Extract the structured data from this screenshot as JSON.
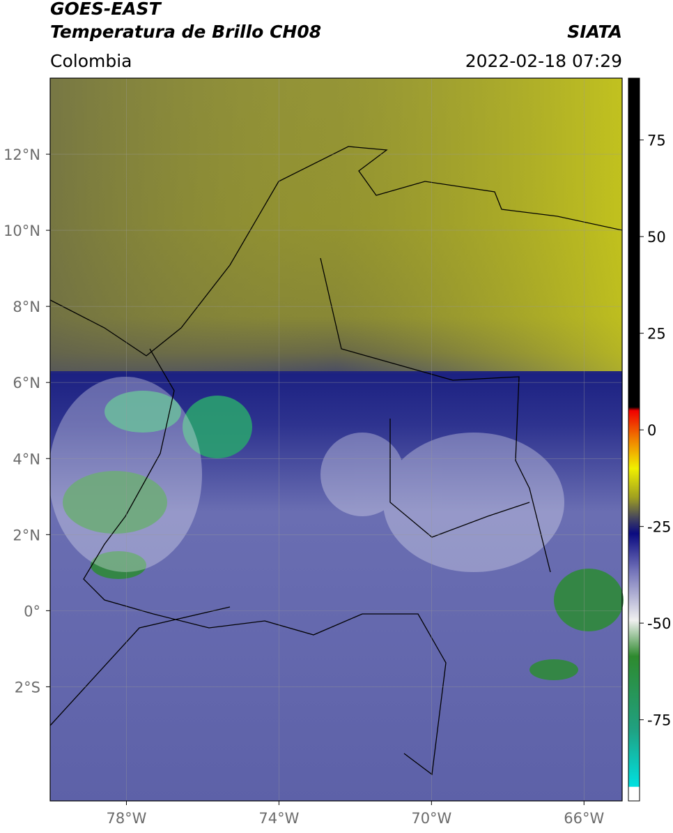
{
  "header": {
    "title": "GOES-EAST",
    "subtitle": "Temperatura de Brillo CH08",
    "region": "Colombia",
    "source": "SIATA",
    "datetime": "2022-02-18 07:29"
  },
  "map": {
    "latlim": [
      -5,
      14
    ],
    "lonlim": [
      -80,
      -65
    ],
    "lat_ticks": [
      {
        "value": 12,
        "label": "12°N"
      },
      {
        "value": 10,
        "label": "10°N"
      },
      {
        "value": 8,
        "label": "8°N"
      },
      {
        "value": 6,
        "label": "6°N"
      },
      {
        "value": 4,
        "label": "4°N"
      },
      {
        "value": 2,
        "label": "2°N"
      },
      {
        "value": 0,
        "label": "0°"
      },
      {
        "value": -2,
        "label": "2°S"
      }
    ],
    "lon_ticks": [
      {
        "value": -78,
        "label": "78°W"
      },
      {
        "value": -74,
        "label": "74°W"
      },
      {
        "value": -70,
        "label": "70°W"
      },
      {
        "value": -66,
        "label": "66°W"
      }
    ],
    "grid": true
  },
  "colorbar": {
    "lim": [
      -96,
      91
    ],
    "ticks": [
      75,
      50,
      25,
      0,
      -25,
      -50,
      -75
    ]
  }
}
